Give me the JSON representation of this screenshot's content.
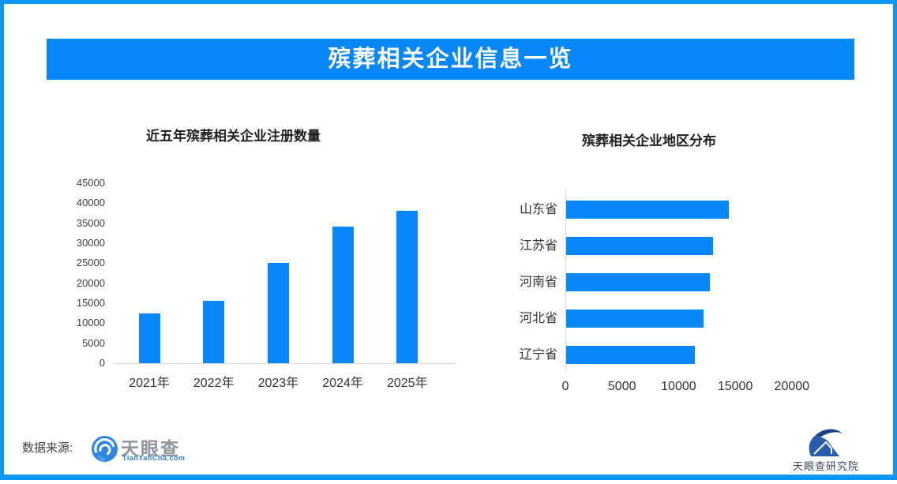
{
  "banner": {
    "title": "殡葬相关企业信息一览"
  },
  "colors": {
    "primary_blue": "#0887fa",
    "frame_blue": "#0c96f4",
    "axis_line_gray": "#d9d9d9",
    "banner_text": "#ffffff",
    "tyc_url_blue": "#2f7fd6",
    "institute_navy": "#2b5cab"
  },
  "footer": {
    "source_label": "数据来源:",
    "tianyancha_name": "天眼查",
    "tianyancha_url": "TianYanCha.com",
    "research_institute": "天眼查研究院"
  },
  "icons": {
    "tianyancha_eye": "tianyancha-eye-icon",
    "institute_logo": "tianyancha-institute-icon"
  },
  "chart_data": [
    {
      "type": "bar",
      "orientation": "vertical",
      "title": "近五年殡葬相关企业注册数量",
      "categories": [
        "2021年",
        "2022年",
        "2023年",
        "2024年",
        "2025年"
      ],
      "values": [
        12400,
        15500,
        25000,
        34200,
        38000
      ],
      "xlabel": "",
      "ylabel": "",
      "ylim": [
        0,
        45000
      ],
      "ytick_step": 5000,
      "grid": false,
      "legend": false,
      "bar_color": "#0887fa"
    },
    {
      "type": "bar",
      "orientation": "horizontal",
      "title": "殡葬相关企业地区分布",
      "categories": [
        "山东省",
        "江苏省",
        "河南省",
        "河北省",
        "辽宁省"
      ],
      "values": [
        14400,
        13000,
        12700,
        12100,
        11400
      ],
      "xlabel": "",
      "ylabel": "",
      "xlim": [
        0,
        20000
      ],
      "xtick_step": 5000,
      "xtick_labels_shown": [
        0,
        5000,
        10000,
        15000,
        20000
      ],
      "grid": false,
      "legend": false,
      "bar_color": "#0887fa"
    }
  ]
}
